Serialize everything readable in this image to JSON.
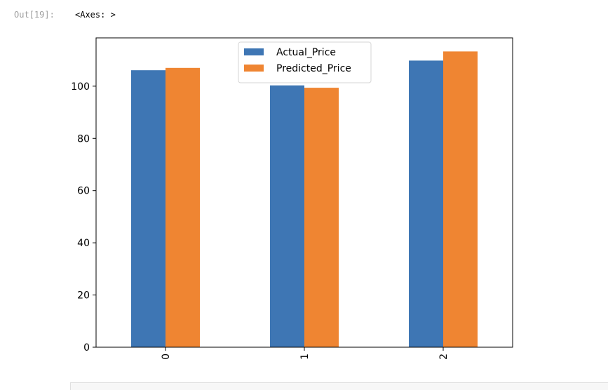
{
  "cell": {
    "prompt": "Out[19]:",
    "output_text": "<Axes: >"
  },
  "colors": {
    "Actual_Price": "#3e76b4",
    "Predicted_Price": "#ef8532"
  },
  "chart_data": {
    "type": "bar",
    "categories": [
      "0",
      "1",
      "2"
    ],
    "series": [
      {
        "name": "Actual_Price",
        "values": [
          106.1,
          100.3,
          109.8
        ]
      },
      {
        "name": "Predicted_Price",
        "values": [
          107.0,
          99.4,
          113.3
        ]
      }
    ],
    "title": "",
    "xlabel": "",
    "ylabel": "",
    "ylim": [
      0,
      118.5
    ],
    "yticks": [
      0,
      20,
      40,
      60,
      80,
      100
    ],
    "xtick_rotation": 90,
    "grid": false,
    "legend": "upper center"
  }
}
